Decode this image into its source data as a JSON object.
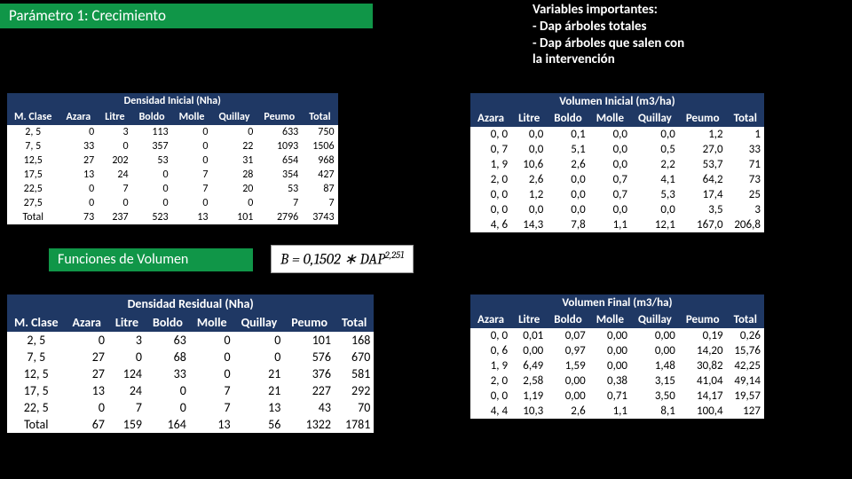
{
  "banner1": "Parámetro 1: Crecimiento",
  "vars_title": "Variables importantes:",
  "vars_b1": "-   Dap árboles totales",
  "vars_b2": "-   Dap árboles que salen con",
  "vars_b3": "     la intervención",
  "func_banner": "Funciones de Volumen",
  "formula_html": "B = 0,1502 ∗ DAP<sup>2,251</sup>",
  "densidad_inicial": {
    "title": "Densidad Inicial (Nha)",
    "cols": [
      "M. Clase",
      "Azara",
      "Litre",
      "Boldo",
      "Molle",
      "Quillay",
      "Peumo",
      "Total"
    ],
    "rows": [
      [
        "2, 5",
        "0",
        "3",
        "113",
        "0",
        "0",
        "633",
        "750"
      ],
      [
        "7, 5",
        "33",
        "0",
        "357",
        "0",
        "22",
        "1093",
        "1506"
      ],
      [
        "12,5",
        "27",
        "202",
        "53",
        "0",
        "31",
        "654",
        "968"
      ],
      [
        "17,5",
        "13",
        "24",
        "0",
        "7",
        "28",
        "354",
        "427"
      ],
      [
        "22,5",
        "0",
        "7",
        "0",
        "7",
        "20",
        "53",
        "87"
      ],
      [
        "27,5",
        "0",
        "0",
        "0",
        "0",
        "0",
        "7",
        "7"
      ],
      [
        "Total",
        "73",
        "237",
        "523",
        "13",
        "101",
        "2796",
        "3743"
      ]
    ]
  },
  "vol_inicial": {
    "title": "Volumen Inicial (m3/ha)",
    "cols": [
      "Azara",
      "Litre",
      "Boldo",
      "Molle",
      "Quillay",
      "Peumo",
      "Total"
    ],
    "rows": [
      [
        "0, 0",
        "0,0",
        "0,1",
        "0,0",
        "0,0",
        "1,2",
        "1"
      ],
      [
        "0, 7",
        "0,0",
        "5,1",
        "0,0",
        "0,5",
        "27,0",
        "33"
      ],
      [
        "1, 9",
        "10,6",
        "2,6",
        "0,0",
        "2,2",
        "53,7",
        "71"
      ],
      [
        "2, 0",
        "2,6",
        "0,0",
        "0,7",
        "4,1",
        "64,2",
        "73"
      ],
      [
        "0, 0",
        "1,2",
        "0,0",
        "0,7",
        "5,3",
        "17,4",
        "25"
      ],
      [
        "0, 0",
        "0,0",
        "0,0",
        "0,0",
        "0,0",
        "3,5",
        "3"
      ],
      [
        "4, 6",
        "14,3",
        "7,8",
        "1,1",
        "12,1",
        "167,0",
        "206,8"
      ]
    ]
  },
  "densidad_residual": {
    "title": "Densidad Residual (Nha)",
    "cols": [
      "M. Clase",
      "Azara",
      "Litre",
      "Boldo",
      "Molle",
      "Quillay",
      "Peumo",
      "Total"
    ],
    "rows": [
      [
        "2, 5",
        "0",
        "3",
        "63",
        "0",
        "0",
        "101",
        "168"
      ],
      [
        "7, 5",
        "27",
        "0",
        "68",
        "0",
        "0",
        "576",
        "670"
      ],
      [
        "12, 5",
        "27",
        "124",
        "33",
        "0",
        "21",
        "376",
        "581"
      ],
      [
        "17, 5",
        "13",
        "24",
        "0",
        "7",
        "21",
        "227",
        "292"
      ],
      [
        "22, 5",
        "0",
        "7",
        "0",
        "7",
        "13",
        "43",
        "70"
      ],
      [
        "Total",
        "67",
        "159",
        "164",
        "13",
        "56",
        "1322",
        "1781"
      ]
    ]
  },
  "vol_final": {
    "title": "Volumen Final (m3/ha)",
    "cols": [
      "Azara",
      "Litre",
      "Boldo",
      "Molle",
      "Quillay",
      "Peumo",
      "Total"
    ],
    "rows": [
      [
        "0, 0",
        "0,01",
        "0,07",
        "0,00",
        "0,00",
        "0,19",
        "0,26"
      ],
      [
        "0, 6",
        "0,00",
        "0,97",
        "0,00",
        "0,00",
        "14,20",
        "15,76"
      ],
      [
        "1, 9",
        "6,49",
        "1,59",
        "0,00",
        "1,48",
        "30,82",
        "42,25"
      ],
      [
        "2, 0",
        "2,58",
        "0,00",
        "0,38",
        "3,15",
        "41,04",
        "49,14"
      ],
      [
        "0, 0",
        "1,19",
        "0,00",
        "0,71",
        "3,50",
        "14,17",
        "19,57"
      ],
      [
        "4, 4",
        "10,3",
        "2,6",
        "1,1",
        "8,1",
        "100,4",
        "127"
      ]
    ]
  }
}
